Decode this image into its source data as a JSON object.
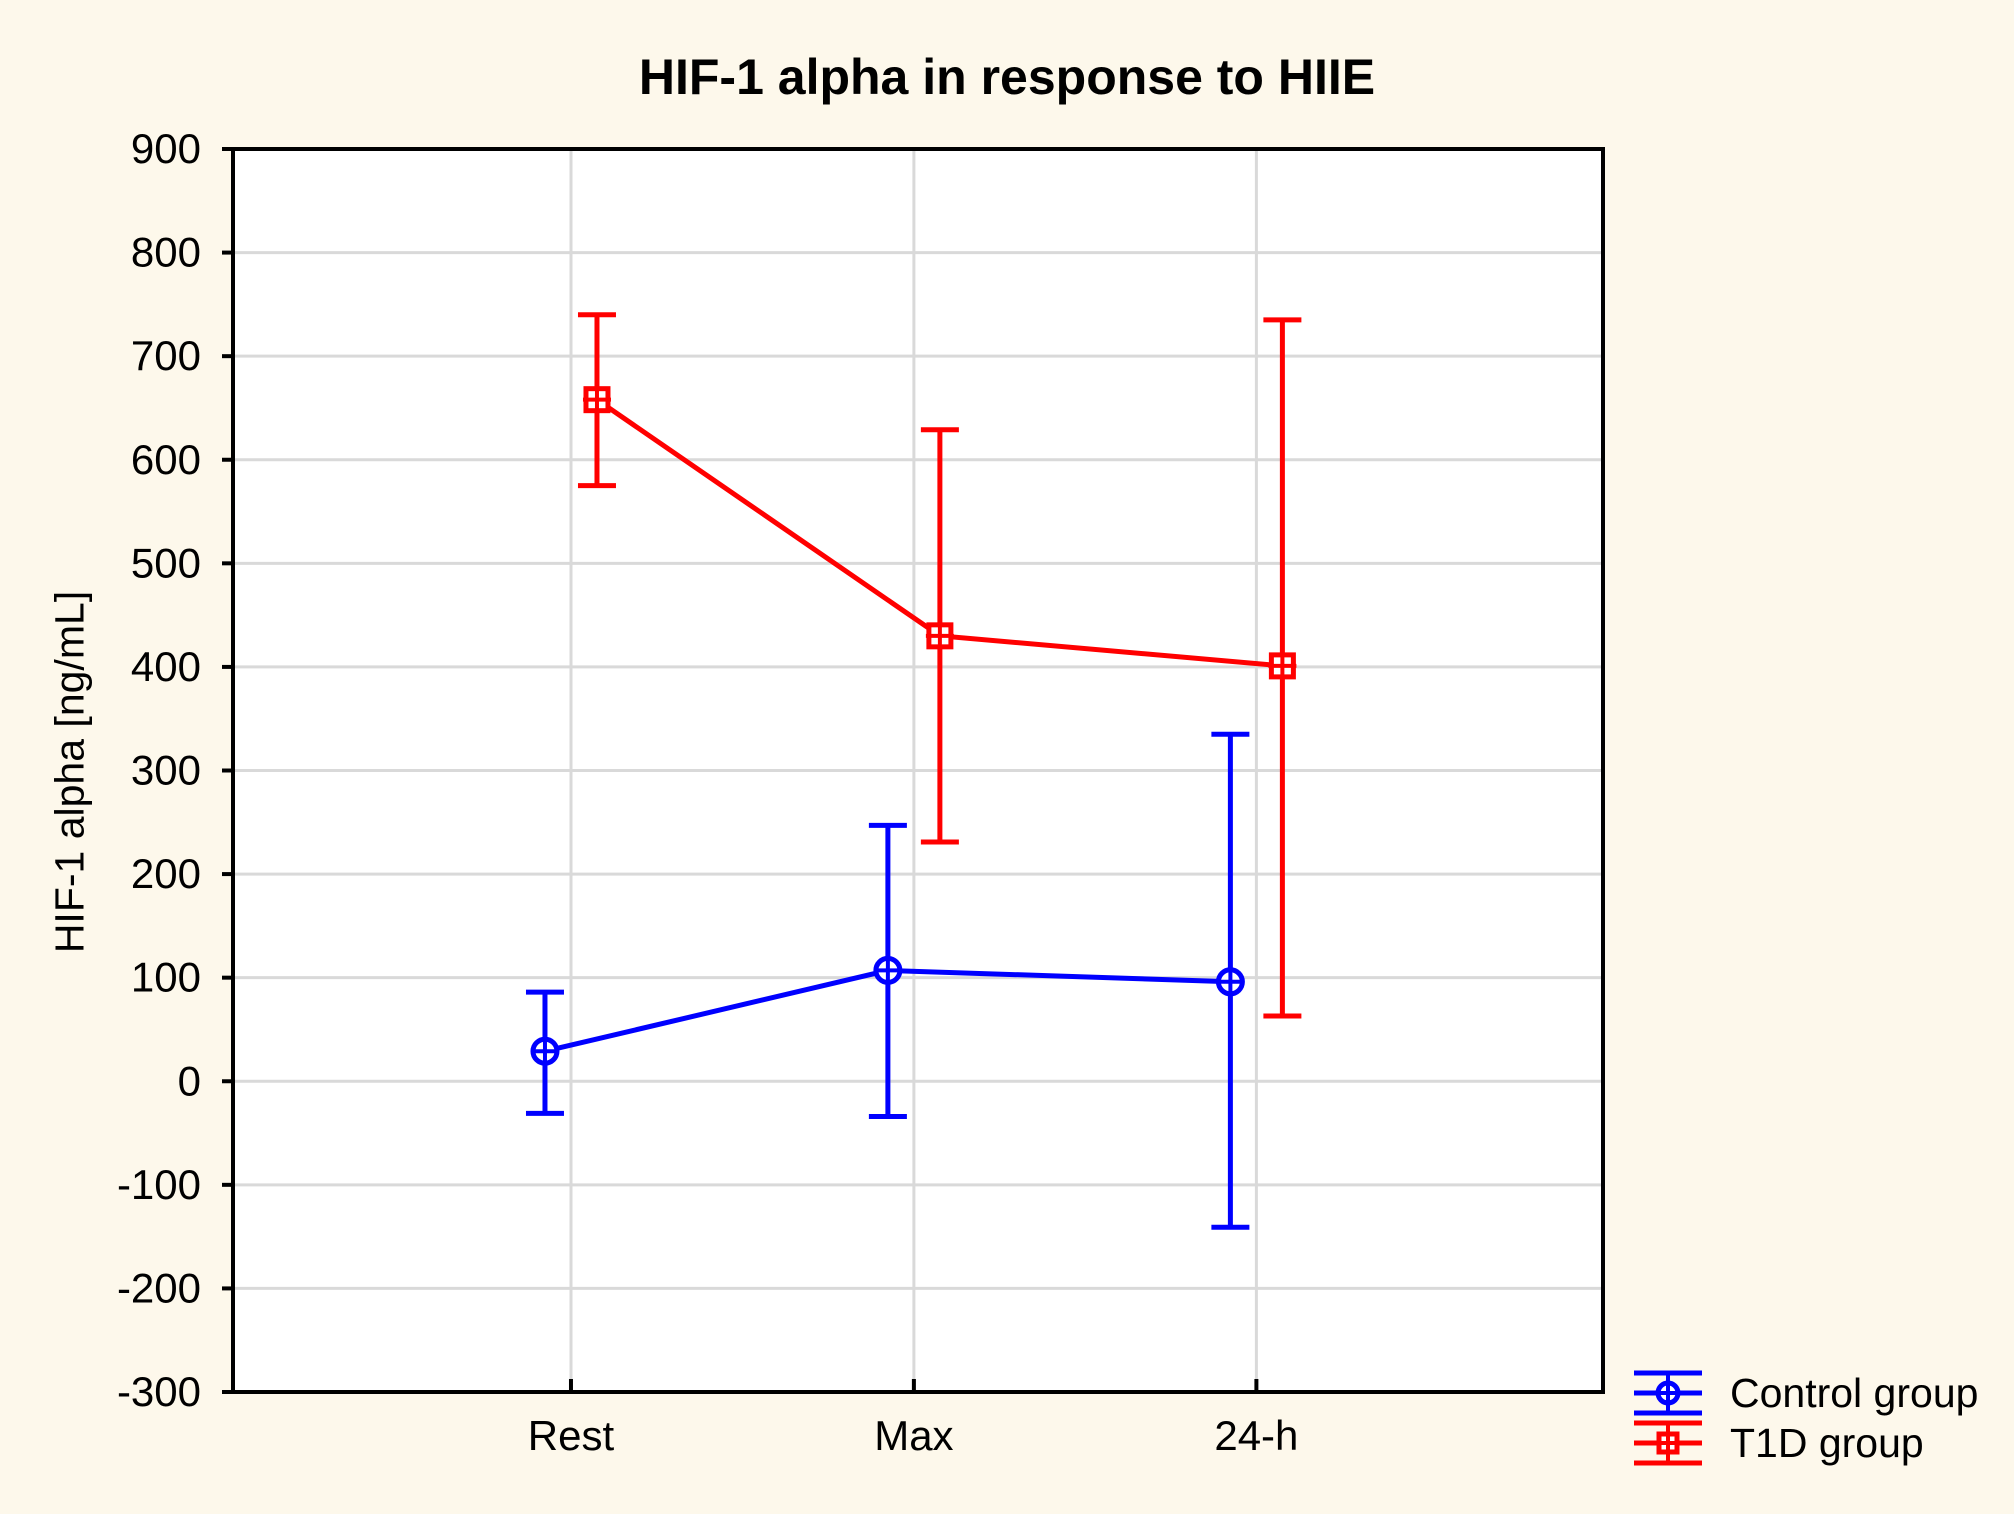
{
  "chart_data": {
    "type": "line",
    "title": "HIF-1 alpha in response to HIIE",
    "ylabel": "HIF-1 alpha [ng/mL]",
    "xlabel": "",
    "categories": [
      "Rest",
      "Max",
      "24-h"
    ],
    "y_axis": {
      "min": -300,
      "max": 900,
      "step": 100
    },
    "grid": {
      "horizontal": true,
      "vertical_at_categories": true
    },
    "legend_position": "bottom-right",
    "series": [
      {
        "name": "Control group",
        "marker": "circle-plus",
        "color": "#0000FF",
        "values": [
          29,
          107,
          96
        ],
        "upper": [
          86,
          247,
          335
        ],
        "lower": [
          -31,
          -34,
          -141
        ]
      },
      {
        "name": "T1D group",
        "marker": "square-plus",
        "color": "#FF0000",
        "values": [
          658,
          430,
          401
        ],
        "upper": [
          740,
          629,
          735
        ],
        "lower": [
          575,
          231,
          63
        ]
      }
    ],
    "colors": {
      "page_background": "#FDF8EB",
      "plot_background": "#FFFFFF",
      "gridline": "#D9D9D9",
      "axis_frame": "#000000",
      "text": "#000000"
    }
  }
}
